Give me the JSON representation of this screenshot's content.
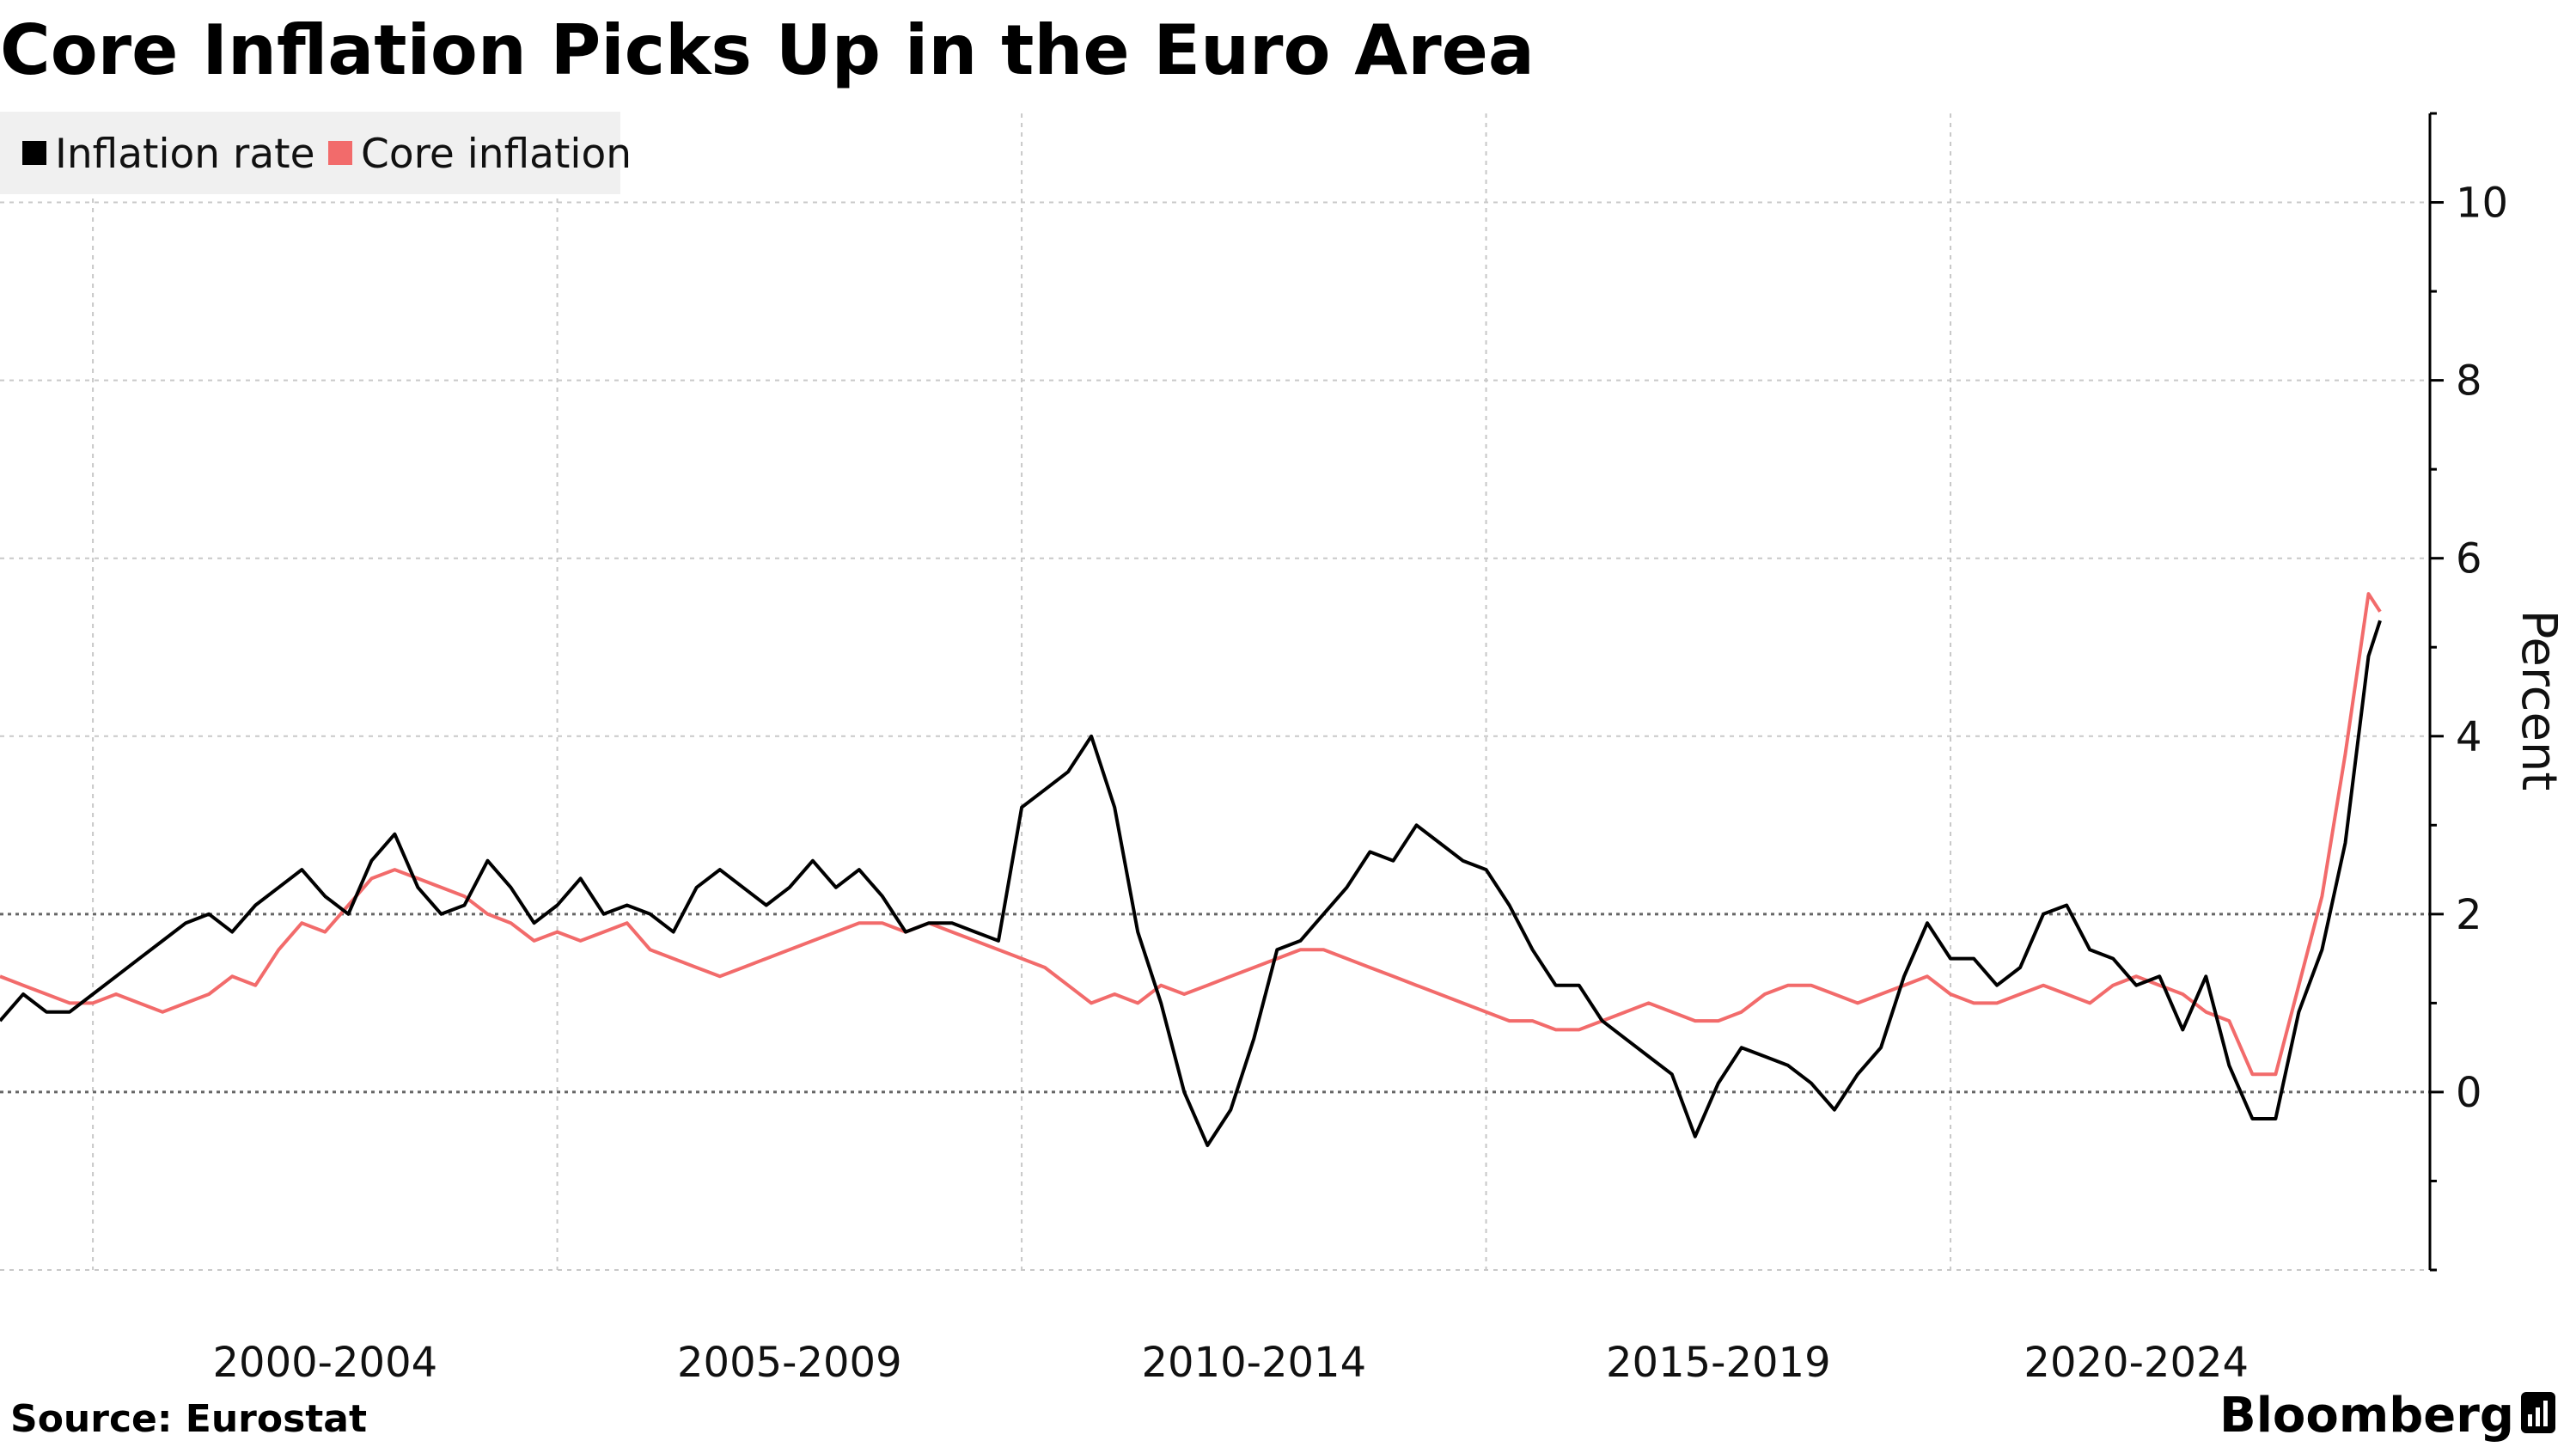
{
  "title": "Core Inflation Picks Up in the Euro Area",
  "source": "Source: Eurostat",
  "brand": "Bloomberg",
  "colors": {
    "inflation": "#000000",
    "core": "#f26b6b"
  },
  "chart_data": {
    "type": "line",
    "title": "Core Inflation Picks Up in the Euro Area",
    "ylabel": "Percent",
    "xlabel": "",
    "ylim": [
      -2,
      11
    ],
    "yticks": [
      0,
      2,
      4,
      6,
      8,
      10
    ],
    "x_range": [
      1998.0,
      2023.625
    ],
    "x_tick_years": [
      1999,
      2004,
      2009,
      2014,
      2019
    ],
    "x_category_labels": [
      {
        "label": "2000-2004",
        "center": 2001.5
      },
      {
        "label": "2005-2009",
        "center": 2006.5
      },
      {
        "label": "2010-2014",
        "center": 2011.5
      },
      {
        "label": "2015-2019",
        "center": 2016.5
      },
      {
        "label": "2020-2024",
        "center": 2021.0
      }
    ],
    "reference_lines": [
      0,
      2
    ],
    "grid": true,
    "legend_position": "top-left",
    "series": [
      {
        "name": "Inflation rate",
        "color": "#000000",
        "points": [
          [
            1998.0,
            0.8
          ],
          [
            1998.25,
            1.1
          ],
          [
            1998.5,
            0.9
          ],
          [
            1998.75,
            0.9
          ],
          [
            1999.0,
            1.1
          ],
          [
            1999.25,
            1.3
          ],
          [
            1999.5,
            1.5
          ],
          [
            1999.75,
            1.7
          ],
          [
            2000.0,
            1.9
          ],
          [
            2000.25,
            2.0
          ],
          [
            2000.5,
            1.8
          ],
          [
            2000.75,
            2.1
          ],
          [
            2001.0,
            2.3
          ],
          [
            2001.25,
            2.5
          ],
          [
            2001.5,
            2.2
          ],
          [
            2001.75,
            2.0
          ],
          [
            2002.0,
            2.6
          ],
          [
            2002.25,
            2.9
          ],
          [
            2002.5,
            2.3
          ],
          [
            2002.75,
            2.0
          ],
          [
            2003.0,
            2.1
          ],
          [
            2003.25,
            2.6
          ],
          [
            2003.5,
            2.3
          ],
          [
            2003.75,
            1.9
          ],
          [
            2004.0,
            2.1
          ],
          [
            2004.25,
            2.4
          ],
          [
            2004.5,
            2.0
          ],
          [
            2004.75,
            2.1
          ],
          [
            2005.0,
            2.0
          ],
          [
            2005.25,
            1.8
          ],
          [
            2005.5,
            2.3
          ],
          [
            2005.75,
            2.5
          ],
          [
            2006.0,
            2.3
          ],
          [
            2006.25,
            2.1
          ],
          [
            2006.5,
            2.3
          ],
          [
            2006.75,
            2.6
          ],
          [
            2007.0,
            2.3
          ],
          [
            2007.25,
            2.5
          ],
          [
            2007.5,
            2.2
          ],
          [
            2007.75,
            1.8
          ],
          [
            2008.0,
            1.9
          ],
          [
            2008.25,
            1.9
          ],
          [
            2008.5,
            1.8
          ],
          [
            2008.75,
            1.7
          ],
          [
            2009.0,
            3.2
          ],
          [
            2009.25,
            3.4
          ],
          [
            2009.5,
            3.6
          ],
          [
            2009.75,
            4.0
          ],
          [
            2010.0,
            3.2
          ],
          [
            2010.25,
            1.8
          ],
          [
            2010.5,
            1.0
          ],
          [
            2010.75,
            0.0
          ],
          [
            2011.0,
            -0.6
          ],
          [
            2011.25,
            -0.2
          ],
          [
            2011.5,
            0.6
          ],
          [
            2011.75,
            1.6
          ],
          [
            2012.0,
            1.7
          ],
          [
            2012.25,
            2.0
          ],
          [
            2012.5,
            2.3
          ],
          [
            2012.75,
            2.7
          ],
          [
            2013.0,
            2.6
          ],
          [
            2013.25,
            3.0
          ],
          [
            2013.5,
            2.8
          ],
          [
            2013.75,
            2.6
          ],
          [
            2014.0,
            2.5
          ],
          [
            2014.25,
            2.1
          ],
          [
            2014.5,
            1.6
          ],
          [
            2014.75,
            1.2
          ],
          [
            2015.0,
            1.2
          ],
          [
            2015.25,
            0.8
          ],
          [
            2015.5,
            0.6
          ],
          [
            2015.75,
            0.4
          ],
          [
            2016.0,
            0.2
          ],
          [
            2016.25,
            -0.5
          ],
          [
            2016.5,
            0.1
          ],
          [
            2016.75,
            0.5
          ],
          [
            2017.0,
            0.4
          ],
          [
            2017.25,
            0.3
          ],
          [
            2017.5,
            0.1
          ],
          [
            2017.75,
            -0.2
          ],
          [
            2018.0,
            0.2
          ],
          [
            2018.25,
            0.5
          ],
          [
            2018.5,
            1.3
          ],
          [
            2018.75,
            1.9
          ],
          [
            2019.0,
            1.5
          ],
          [
            2019.25,
            1.5
          ],
          [
            2019.5,
            1.2
          ],
          [
            2019.75,
            1.4
          ],
          [
            2020.0,
            2.0
          ],
          [
            2020.25,
            2.1
          ],
          [
            2020.5,
            1.6
          ],
          [
            2020.75,
            1.5
          ],
          [
            2021.0,
            1.2
          ],
          [
            2021.25,
            1.3
          ],
          [
            2021.5,
            0.7
          ],
          [
            2021.75,
            1.3
          ],
          [
            2022.0,
            0.3
          ],
          [
            2022.25,
            -0.3
          ],
          [
            2022.5,
            -0.3
          ],
          [
            2022.75,
            0.9
          ],
          [
            2023.0,
            1.6
          ],
          [
            2023.25,
            2.8
          ],
          [
            2023.5,
            4.9
          ],
          [
            2023.625,
            5.3
          ]
        ]
      },
      {
        "name": "Core inflation",
        "color": "#f26b6b",
        "points": [
          [
            1998.0,
            1.3
          ],
          [
            1998.25,
            1.2
          ],
          [
            1998.5,
            1.1
          ],
          [
            1998.75,
            1.0
          ],
          [
            1999.0,
            1.0
          ],
          [
            1999.25,
            1.1
          ],
          [
            1999.5,
            1.0
          ],
          [
            1999.75,
            0.9
          ],
          [
            2000.0,
            1.0
          ],
          [
            2000.25,
            1.1
          ],
          [
            2000.5,
            1.3
          ],
          [
            2000.75,
            1.2
          ],
          [
            2001.0,
            1.6
          ],
          [
            2001.25,
            1.9
          ],
          [
            2001.5,
            1.8
          ],
          [
            2001.75,
            2.1
          ],
          [
            2002.0,
            2.4
          ],
          [
            2002.25,
            2.5
          ],
          [
            2002.5,
            2.4
          ],
          [
            2002.75,
            2.3
          ],
          [
            2003.0,
            2.2
          ],
          [
            2003.25,
            2.0
          ],
          [
            2003.5,
            1.9
          ],
          [
            2003.75,
            1.7
          ],
          [
            2004.0,
            1.8
          ],
          [
            2004.25,
            1.7
          ],
          [
            2004.5,
            1.8
          ],
          [
            2004.75,
            1.9
          ],
          [
            2005.0,
            1.6
          ],
          [
            2005.25,
            1.5
          ],
          [
            2005.5,
            1.4
          ],
          [
            2005.75,
            1.3
          ],
          [
            2006.0,
            1.4
          ],
          [
            2006.25,
            1.5
          ],
          [
            2006.5,
            1.6
          ],
          [
            2006.75,
            1.7
          ],
          [
            2007.0,
            1.8
          ],
          [
            2007.25,
            1.9
          ],
          [
            2007.5,
            1.9
          ],
          [
            2007.75,
            1.8
          ],
          [
            2008.0,
            1.9
          ],
          [
            2008.25,
            1.8
          ],
          [
            2008.5,
            1.7
          ],
          [
            2008.75,
            1.6
          ],
          [
            2009.0,
            1.5
          ],
          [
            2009.25,
            1.4
          ],
          [
            2009.5,
            1.2
          ],
          [
            2009.75,
            1.0
          ],
          [
            2010.0,
            1.1
          ],
          [
            2010.25,
            1.0
          ],
          [
            2010.5,
            1.2
          ],
          [
            2010.75,
            1.1
          ],
          [
            2011.0,
            1.2
          ],
          [
            2011.25,
            1.3
          ],
          [
            2011.5,
            1.4
          ],
          [
            2011.75,
            1.5
          ],
          [
            2012.0,
            1.6
          ],
          [
            2012.25,
            1.6
          ],
          [
            2012.5,
            1.5
          ],
          [
            2012.75,
            1.4
          ],
          [
            2013.0,
            1.3
          ],
          [
            2013.25,
            1.2
          ],
          [
            2013.5,
            1.1
          ],
          [
            2013.75,
            1.0
          ],
          [
            2014.0,
            0.9
          ],
          [
            2014.25,
            0.8
          ],
          [
            2014.5,
            0.8
          ],
          [
            2014.75,
            0.7
          ],
          [
            2015.0,
            0.7
          ],
          [
            2015.25,
            0.8
          ],
          [
            2015.5,
            0.9
          ],
          [
            2015.75,
            1.0
          ],
          [
            2016.0,
            0.9
          ],
          [
            2016.25,
            0.8
          ],
          [
            2016.5,
            0.8
          ],
          [
            2016.75,
            0.9
          ],
          [
            2017.0,
            1.1
          ],
          [
            2017.25,
            1.2
          ],
          [
            2017.5,
            1.2
          ],
          [
            2017.75,
            1.1
          ],
          [
            2018.0,
            1.0
          ],
          [
            2018.25,
            1.1
          ],
          [
            2018.5,
            1.2
          ],
          [
            2018.75,
            1.3
          ],
          [
            2019.0,
            1.1
          ],
          [
            2019.25,
            1.0
          ],
          [
            2019.5,
            1.0
          ],
          [
            2019.75,
            1.1
          ],
          [
            2020.0,
            1.2
          ],
          [
            2020.25,
            1.1
          ],
          [
            2020.5,
            1.0
          ],
          [
            2020.75,
            1.2
          ],
          [
            2021.0,
            1.3
          ],
          [
            2021.25,
            1.2
          ],
          [
            2021.5,
            1.1
          ],
          [
            2021.75,
            0.9
          ],
          [
            2022.0,
            0.8
          ],
          [
            2022.25,
            0.2
          ],
          [
            2022.5,
            0.2
          ],
          [
            2022.75,
            1.2
          ],
          [
            2023.0,
            2.2
          ],
          [
            2023.25,
            3.8
          ],
          [
            2023.5,
            5.6
          ],
          [
            2023.625,
            5.4
          ]
        ]
      }
    ]
  }
}
